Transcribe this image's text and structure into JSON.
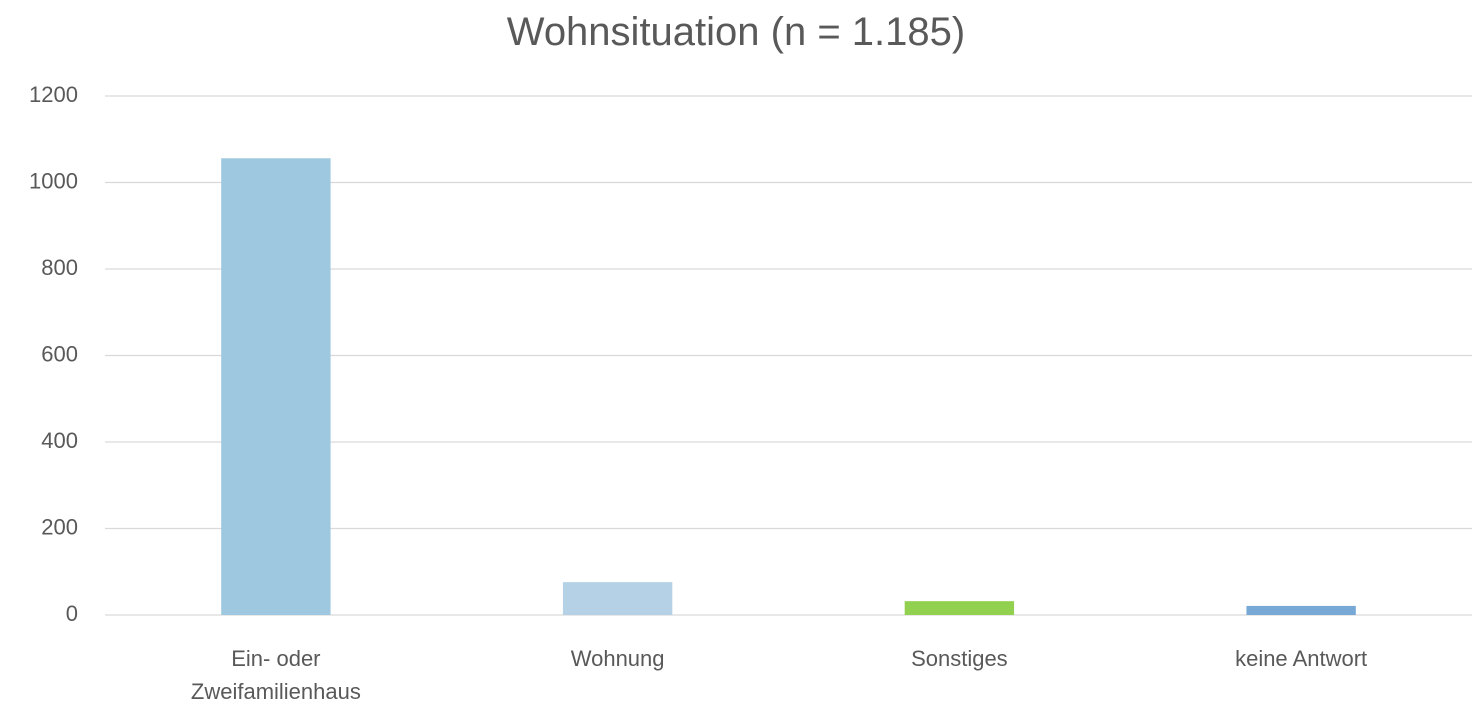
{
  "chart_data": {
    "type": "bar",
    "title": "Wohnsituation (n = 1.185)",
    "categories": [
      "Ein- oder Zweifamilienhaus",
      "Wohnung",
      "Sonstiges",
      "keine Antwort"
    ],
    "values": [
      1056,
      76,
      32,
      21
    ],
    "colors": [
      "#9dc8df",
      "#b4d1e6",
      "#92d050",
      "#78a8d6"
    ],
    "ylim": [
      0,
      1200
    ],
    "yticks": [
      0,
      200,
      400,
      600,
      800,
      1000,
      1200
    ],
    "grid": true
  }
}
